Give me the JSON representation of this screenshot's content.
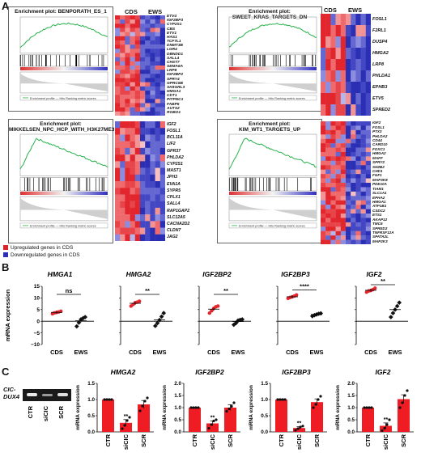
{
  "panelA": {
    "letter": "A",
    "groups": [
      "CDS",
      "EWS"
    ],
    "gsea_plots": [
      {
        "title": "Enrichment plot: BENPORATH_ES_1",
        "legend": "Enrichment profile — Hits   Ranking metric scores"
      },
      {
        "title": "Enrichment plot: SWEET_KRAS_TARGETS_DN",
        "legend": "Enrichment profile — Hits   Ranking metric scores"
      },
      {
        "title": "Enrichment plot: MIKKELSEN_NPC_HCP_WITH_H3K27ME3",
        "legend": "Enrichment profile — Hits   Ranking metric scores"
      },
      {
        "title": "Enrichment plot: KIM_WT1_TARGETS_UP",
        "legend": "Enrichment profile — Hits   Ranking metric scores"
      }
    ],
    "heatmap_genes": [
      [
        "ETV4",
        "IGF2BP3",
        "CYP2S1",
        "CBS",
        "ETV1",
        "HAS1",
        "TCF7L1",
        "DNMT3B",
        "LGR4",
        "DBNDD1",
        "SALL4",
        "CHST7",
        "SEMA6A",
        "LRP8",
        "IGF2BP2",
        "SPRY4",
        "GPRC5B",
        "SH3GRL3",
        "HMGA1",
        "CDT1",
        "PITPNC1",
        "FABP5",
        "AUTS2",
        "ROBO1"
      ],
      [
        "FOSL1",
        "F2RL1",
        "DUSP4",
        "HMGA2",
        "LRP8",
        "PHLDA1",
        "EPHB3",
        "ETV5",
        "SPRED2"
      ],
      [
        "IGF2",
        "FOSL1",
        "BCL11A",
        "LIF2",
        "GPR37",
        "PHLDA2",
        "CYP2S1",
        "MAST1",
        "JPH3",
        "EVA1A",
        "SYPR5",
        "CPLX1",
        "SALL4",
        "RAP1GAP2",
        "SLC12A5",
        "CACNA2D2",
        "CLDN7",
        "JAG2"
      ],
      [
        "IGF2",
        "FOSL1",
        "PTX3",
        "PHLDA2",
        "CD44",
        "CARD10",
        "FOXC1",
        "HMGA2",
        "MAFF",
        "SPRY2",
        "SH2B2",
        "CHD1",
        "FGF1",
        "MAP3K8",
        "PDE10A",
        "TIAM1",
        "SLC1A1",
        "EPHA2",
        "HMGA1",
        "ATP1B1",
        "CSDC2",
        "ETS1",
        "AKAP12",
        "TMC6",
        "SPRED2",
        "TNFRSF12A",
        "SPATA2L",
        "MAP2K3"
      ]
    ],
    "legend_up": "Upregulated genes in CDS",
    "legend_down": "Downregulated genes in CDS",
    "colors": {
      "up": "#d9262b",
      "down": "#2a2fb5"
    }
  },
  "chart_data": [
    {
      "type": "scatter",
      "panel": "B",
      "title": "HMGA1",
      "categories": [
        "CDS",
        "EWS"
      ],
      "ylabel": "mRNA expression",
      "ylim": [
        -10,
        15
      ],
      "yticks": [
        "15",
        "10",
        "5",
        "0",
        "−5",
        "−10"
      ],
      "significance": "ns",
      "points": {
        "CDS": [
          3.2,
          3.6,
          3.8,
          4.0,
          4.3
        ],
        "EWS": [
          -2.2,
          -0.6,
          0.8,
          1.3,
          1.8
        ]
      },
      "means": {
        "CDS": 3.8,
        "EWS": 0.2
      }
    },
    {
      "type": "scatter",
      "panel": "B",
      "title": "HMGA2",
      "categories": [
        "CDS",
        "EWS"
      ],
      "ylim": [
        -10,
        15
      ],
      "significance": "**",
      "points": {
        "CDS": [
          6.5,
          7.2,
          8.0,
          8.2,
          8.6
        ],
        "EWS": [
          -2.0,
          -0.8,
          0.5,
          2.0,
          3.5
        ]
      },
      "means": {
        "CDS": 7.7,
        "EWS": 0.6
      }
    },
    {
      "type": "scatter",
      "panel": "B",
      "title": "IGF2BP2",
      "categories": [
        "CDS",
        "EWS"
      ],
      "ylim": [
        -10,
        15
      ],
      "significance": "**",
      "points": {
        "CDS": [
          3.5,
          4.5,
          5.5,
          6.2,
          6.5
        ],
        "EWS": [
          -1.5,
          -0.8,
          0.3,
          0.6,
          0.8
        ]
      },
      "means": {
        "CDS": 5.2,
        "EWS": -0.1
      }
    },
    {
      "type": "scatter",
      "panel": "B",
      "title": "IGF2BP3",
      "categories": [
        "CDS",
        "EWS"
      ],
      "ylim": [
        -10,
        15
      ],
      "significance": "****",
      "points": {
        "CDS": [
          9.8,
          10.2,
          10.5,
          10.8,
          11.3
        ],
        "EWS": [
          2.2,
          2.6,
          2.9,
          3.2,
          3.4
        ]
      },
      "means": {
        "CDS": 10.5,
        "EWS": 2.9
      }
    },
    {
      "type": "scatter",
      "panel": "B",
      "title": "IGF2",
      "categories": [
        "CDS",
        "EWS"
      ],
      "ylim": [
        -10,
        15
      ],
      "significance": "**",
      "points": {
        "CDS": [
          12.5,
          13.0,
          13.2,
          13.6,
          14.2
        ],
        "EWS": [
          1.8,
          3.5,
          5.0,
          6.5,
          8.0
        ]
      },
      "means": {
        "CDS": 13.3,
        "EWS": 5.0
      }
    },
    {
      "type": "bar",
      "panel": "C",
      "title": "HMGA2",
      "categories": [
        "CTR",
        "siCIC",
        "SCR"
      ],
      "ylabel": "mRNA expression",
      "ylim": [
        0,
        1.5
      ],
      "yticks": [
        "1.5",
        "1.0",
        "0.5",
        "0.0"
      ],
      "values": [
        1.0,
        0.28,
        0.85
      ],
      "errors": [
        0,
        0.1,
        0.12
      ],
      "significance": [
        "",
        "**",
        ""
      ],
      "points": [
        [
          1,
          1,
          1,
          1
        ],
        [
          0.1,
          0.2,
          0.35,
          0.45
        ],
        [
          0.65,
          0.8,
          0.95,
          1.05
        ]
      ]
    },
    {
      "type": "bar",
      "panel": "C",
      "title": "IGF2BP2",
      "categories": [
        "CTR",
        "siCIC",
        "SCR"
      ],
      "ylabel": "mRNA expression",
      "ylim": [
        0,
        2.0
      ],
      "yticks": [
        "2.0",
        "1.5",
        "1.0",
        "0.5",
        "0.0"
      ],
      "values": [
        1.0,
        0.35,
        1.0
      ],
      "errors": [
        0,
        0.1,
        0.12
      ],
      "significance": [
        "",
        "**",
        ""
      ],
      "points": [
        [
          1,
          1,
          1,
          1
        ],
        [
          0.15,
          0.3,
          0.45,
          0.5
        ],
        [
          0.85,
          0.95,
          1.05,
          1.2
        ]
      ]
    },
    {
      "type": "bar",
      "panel": "C",
      "title": "IGF2BP3",
      "categories": [
        "CTR",
        "siCIC",
        "SCR"
      ],
      "ylabel": "mRNA expression",
      "ylim": [
        0,
        1.5
      ],
      "yticks": [
        "1.5",
        "1.0",
        "0.5",
        "0.0"
      ],
      "values": [
        1.0,
        0.12,
        0.92
      ],
      "errors": [
        0,
        0.04,
        0.1
      ],
      "significance": [
        "",
        "**",
        ""
      ],
      "points": [
        [
          1,
          1,
          1,
          1
        ],
        [
          0.05,
          0.1,
          0.15,
          0.18
        ],
        [
          0.75,
          0.85,
          1.0,
          1.1
        ]
      ]
    },
    {
      "type": "bar",
      "panel": "C",
      "title": "IGF2",
      "categories": [
        "CTR",
        "siCIC",
        "SCR"
      ],
      "ylabel": "mRNA expression",
      "ylim": [
        0,
        2.0
      ],
      "yticks": [
        "2.0",
        "1.5",
        "1.0",
        "0.5",
        "0.0"
      ],
      "values": [
        1.0,
        0.25,
        1.35
      ],
      "errors": [
        0,
        0.12,
        0.18
      ],
      "significance": [
        "",
        "**",
        ""
      ],
      "points": [
        [
          1,
          1,
          1,
          1
        ],
        [
          0.05,
          0.15,
          0.3,
          0.5
        ],
        [
          1.0,
          1.2,
          1.5,
          1.7
        ]
      ]
    }
  ],
  "panelB": {
    "letter": "B",
    "ylabel": "mRNA expression",
    "xlabels": [
      "CDS",
      "EWS"
    ]
  },
  "panelC": {
    "letter": "C",
    "gel_label_1": "CIC-",
    "gel_label_2": "DUX4",
    "lanes": [
      "CTR",
      "siCIC",
      "SCR"
    ]
  }
}
